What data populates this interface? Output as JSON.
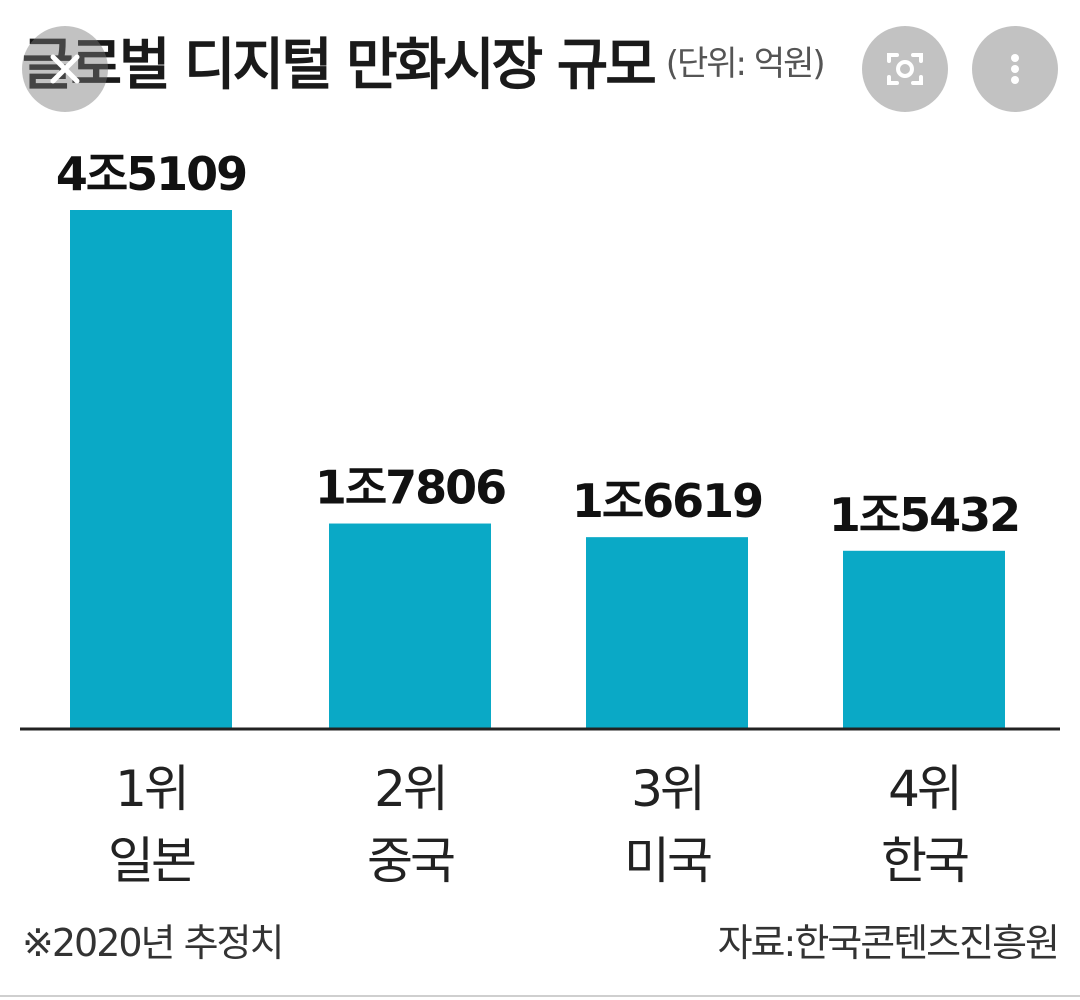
{
  "header": {
    "title": "글로벌 디지털 만화시장 규모",
    "unit": "(단위: 억원)"
  },
  "overlay": {
    "close_icon": "close-icon",
    "lens_icon": "lens-search-icon",
    "more_icon": "more-vertical-icon"
  },
  "colors": {
    "bar": "#0aa9c6",
    "axis": "#222222",
    "overlay": "#7a7a7a"
  },
  "chart_data": {
    "type": "bar",
    "categories": [
      "1위\n일본",
      "2위\n중국",
      "3위\n미국",
      "4위\n한국"
    ],
    "category_rank": [
      "1위",
      "2위",
      "3위",
      "4위"
    ],
    "category_country": [
      "일본",
      "중국",
      "미국",
      "한국"
    ],
    "values": [
      45109,
      17806,
      16619,
      15432
    ],
    "value_labels": [
      "4조5109",
      "1조7806",
      "1조6619",
      "1조5432"
    ],
    "title": "글로벌 디지털 만화시장 규모",
    "ylabel": "",
    "xlabel": "",
    "ylim": [
      0,
      45109
    ],
    "grid": false,
    "legend": "none"
  },
  "footer": {
    "note": "※2020년 추정치",
    "source": "자료:한국콘텐츠진흥원"
  }
}
